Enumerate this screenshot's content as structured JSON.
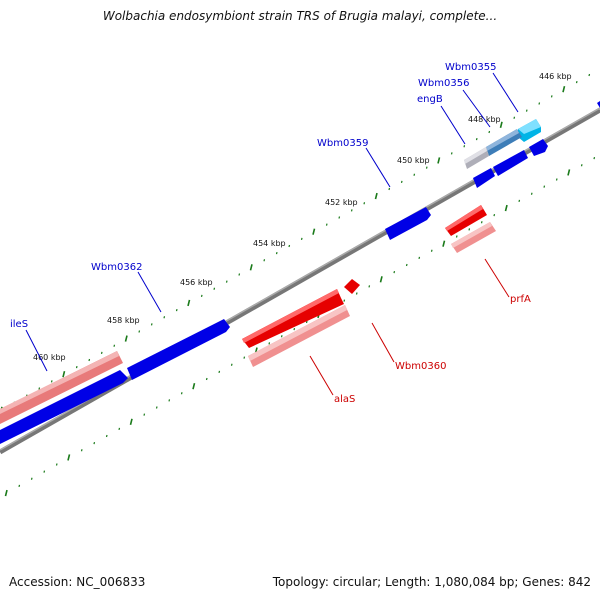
{
  "title": "Wolbachia endosymbiont strain TRS of Brugia malayi, complete...",
  "footer": {
    "accession_label": "Accession:",
    "accession": "NC_006833",
    "topology_label": "Topology:",
    "topology": "circular",
    "length_label": "Length:",
    "length": "1,080,084 bp",
    "genes_label": "Genes:",
    "genes": "842"
  },
  "kbp_ticks": [
    {
      "label": "446 kbp",
      "kbp": 446
    },
    {
      "label": "448 kbp",
      "kbp": 448
    },
    {
      "label": "450 kbp",
      "kbp": 450
    },
    {
      "label": "452 kbp",
      "kbp": 452
    },
    {
      "label": "454 kbp",
      "kbp": 454
    },
    {
      "label": "456 kbp",
      "kbp": 456
    },
    {
      "label": "458 kbp",
      "kbp": 458
    },
    {
      "label": "460 kbp",
      "kbp": 460
    }
  ],
  "forward_genes": [
    {
      "label": "Wbm0355",
      "color": "#00b4e6"
    },
    {
      "label": "Wbm0356",
      "color": "#3d7db8"
    },
    {
      "label": "engB",
      "color": "#b7b7c2"
    },
    {
      "label": "Wbm0359",
      "color": "#0000e6"
    },
    {
      "label": "Wbm0362",
      "color": "#0000e6"
    },
    {
      "label": "ileS",
      "color": "#0000e6"
    }
  ],
  "reverse_genes": [
    {
      "label": "prfA",
      "color": "#e60000"
    },
    {
      "label": "Wbm0360",
      "color": "#e60000"
    },
    {
      "label": "alaS",
      "color": "#e60000"
    }
  ],
  "colors": {
    "forward_cds": "#0000e6",
    "reverse_cds": "#e60000",
    "forward_gene": "#e87a7a",
    "reverse_gene": "#f09090",
    "backbone": "#888888",
    "tick_dots": "#1a7a1a",
    "gene_label_forward": "#0000cc",
    "gene_label_reverse": "#cc0000"
  }
}
